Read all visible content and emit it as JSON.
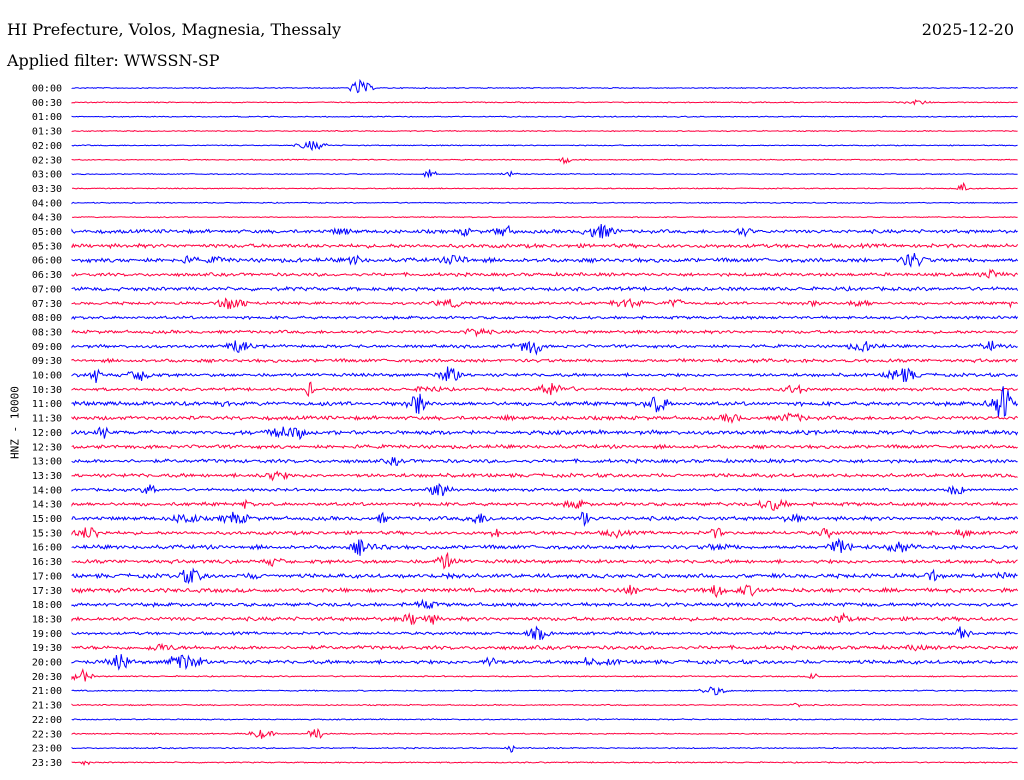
{
  "header": {
    "station": "HI Prefecture, Volos, Magnesia, Thessaly",
    "date": "2025-12-20",
    "filter": "Applied filter: WWSSN-SP"
  },
  "chart_data": {
    "type": "line",
    "kind": "helicorder",
    "ylabel": "HNZ - 10000",
    "rows": [
      "00:00",
      "00:30",
      "01:00",
      "01:30",
      "02:00",
      "02:30",
      "03:00",
      "03:30",
      "04:00",
      "04:30",
      "05:00",
      "05:30",
      "06:00",
      "06:30",
      "07:00",
      "07:30",
      "08:00",
      "08:30",
      "09:00",
      "09:30",
      "10:00",
      "10:30",
      "11:00",
      "11:30",
      "12:00",
      "12:30",
      "13:00",
      "13:30",
      "14:00",
      "14:30",
      "15:00",
      "15:30",
      "16:00",
      "16:30",
      "17:00",
      "17:30",
      "18:00",
      "18:30",
      "19:00",
      "19:30",
      "20:00",
      "20:30",
      "21:00",
      "21:30",
      "22:00",
      "22:30",
      "23:00",
      "23:30"
    ],
    "colors": {
      "even": "#0000ff",
      "odd": "#ff0040"
    },
    "grid": false,
    "legend": "none"
  }
}
